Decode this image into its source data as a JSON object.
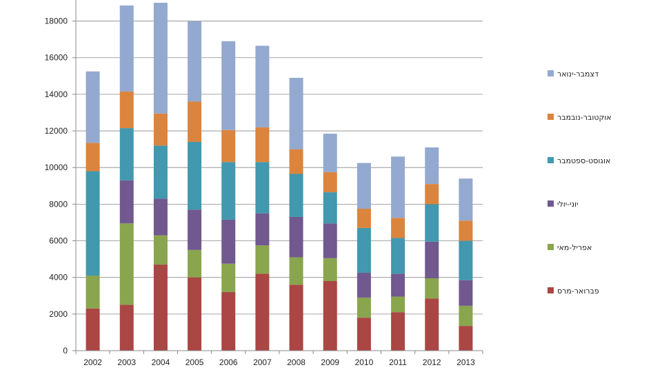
{
  "chart_data": {
    "type": "bar",
    "stacked": true,
    "categories": [
      "2002",
      "2003",
      "2004",
      "2005",
      "2006",
      "2007",
      "2008",
      "2009",
      "2010",
      "2011",
      "2012",
      "2013"
    ],
    "series": [
      {
        "name": "פברואר-מרס",
        "color": "#AA4643",
        "values": [
          2300,
          2500,
          4700,
          4000,
          3200,
          4200,
          3600,
          3800,
          1800,
          2100,
          2850,
          1350
        ]
      },
      {
        "name": "אפריל-מאי",
        "color": "#89A54E",
        "values": [
          1800,
          4450,
          1600,
          1500,
          1550,
          1550,
          1500,
          1250,
          1100,
          850,
          1100,
          1100
        ]
      },
      {
        "name": "יוני-יולי",
        "color": "#71588F",
        "values": [
          0,
          2350,
          2000,
          2200,
          2400,
          1750,
          2200,
          1900,
          1350,
          1250,
          2000,
          1400
        ]
      },
      {
        "name": "אוגוסט-ספטמבר",
        "color": "#4198AF",
        "values": [
          5700,
          2850,
          2900,
          3700,
          3150,
          2800,
          2350,
          1700,
          2450,
          1950,
          2050,
          2150
        ]
      },
      {
        "name": "אוקטובר-נובמבר",
        "color": "#DB843D",
        "values": [
          1550,
          2000,
          1750,
          2200,
          1750,
          1900,
          1350,
          1100,
          1050,
          1100,
          1100,
          1100
        ]
      },
      {
        "name": "דצמבר-ינואר",
        "color": "#93A9CF",
        "values": [
          3900,
          4700,
          6050,
          4400,
          4850,
          4450,
          3900,
          2100,
          2500,
          3350,
          2000,
          2300
        ]
      }
    ],
    "yticks": [
      "0",
      "2000",
      "4000",
      "6000",
      "8000",
      "10000",
      "12000",
      "14000",
      "16000",
      "18000"
    ],
    "ylim": [
      0,
      19000
    ],
    "grid": true,
    "legend_position": "right",
    "title": "",
    "xlabel": "",
    "ylabel": ""
  }
}
